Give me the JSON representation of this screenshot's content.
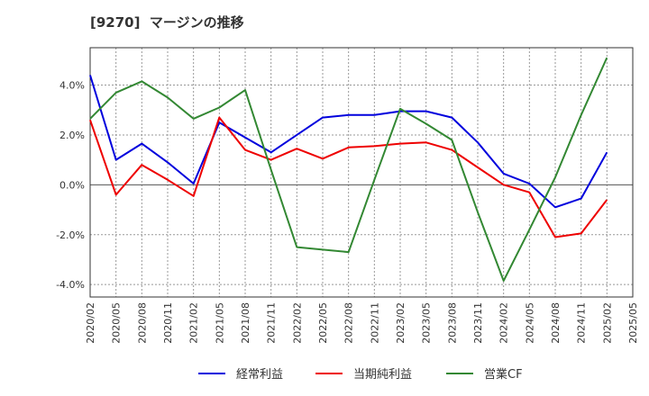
{
  "title": "[9270]  マージンの推移",
  "chart_data": {
    "type": "line",
    "x": [
      "2020/02",
      "2020/05",
      "2020/08",
      "2020/11",
      "2021/02",
      "2021/05",
      "2021/08",
      "2021/11",
      "2022/02",
      "2022/05",
      "2022/08",
      "2022/11",
      "2023/02",
      "2023/05",
      "2023/08",
      "2023/11",
      "2024/02",
      "2024/05",
      "2024/08",
      "2024/11",
      "2025/02",
      "2025/05"
    ],
    "ylim": [
      -4.5,
      5.5
    ],
    "yticks": [
      -4.0,
      -2.0,
      0.0,
      2.0,
      4.0
    ],
    "ytick_labels": [
      "-4.0%",
      "-2.0%",
      "0.0%",
      "2.0%",
      "4.0%"
    ],
    "grid": true,
    "legend_position": "bottom",
    "series": [
      {
        "name": "経常利益",
        "color": "#0000dd",
        "values": [
          4.4,
          1.0,
          1.65,
          0.9,
          0.05,
          2.5,
          1.9,
          1.3,
          2.0,
          2.7,
          2.8,
          2.8,
          2.95,
          2.95,
          2.7,
          1.7,
          0.45,
          0.05,
          -0.9,
          -0.55,
          1.3,
          null
        ]
      },
      {
        "name": "当期純利益",
        "color": "#ee0000",
        "values": [
          2.6,
          -0.4,
          0.8,
          0.2,
          -0.45,
          2.7,
          1.4,
          1.0,
          1.45,
          1.05,
          1.5,
          1.55,
          1.65,
          1.7,
          1.4,
          0.7,
          0.0,
          -0.3,
          -2.1,
          -1.95,
          -0.6,
          null
        ]
      },
      {
        "name": "営業CF",
        "color": "#338833",
        "values": [
          2.65,
          3.7,
          4.15,
          3.5,
          2.65,
          3.1,
          3.8,
          0.6,
          -2.5,
          -2.6,
          -2.7,
          0.2,
          3.05,
          2.45,
          1.8,
          -1.1,
          -3.85,
          -1.8,
          0.3,
          2.8,
          5.1,
          null
        ]
      }
    ]
  }
}
